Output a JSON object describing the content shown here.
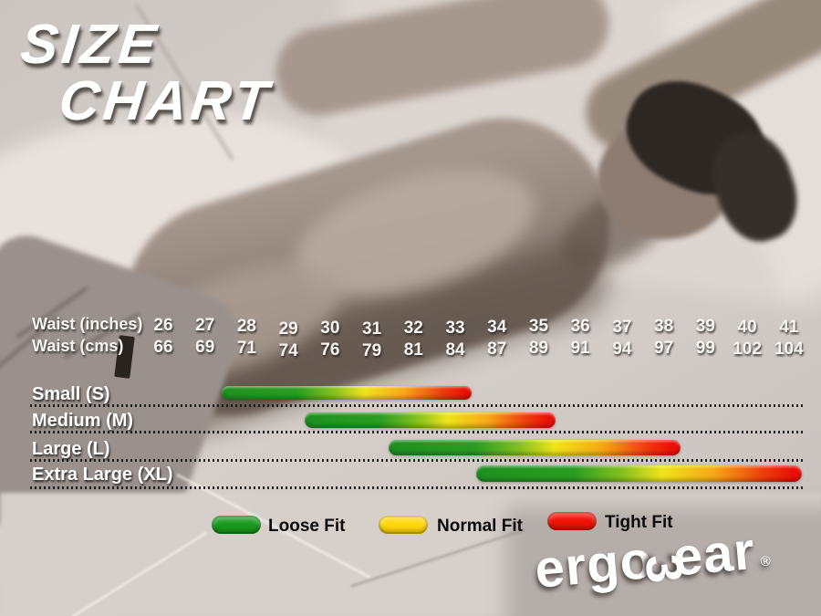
{
  "title": {
    "line1": "SIZE",
    "line2": "CHART"
  },
  "waist": {
    "inches_label": "Waist (inches)",
    "cms_label": "Waist (cms)",
    "inches": [
      "26",
      "27",
      "28",
      "29",
      "30",
      "31",
      "32",
      "33",
      "34",
      "35",
      "36",
      "37",
      "38",
      "39",
      "40",
      "41"
    ],
    "cms": [
      "66",
      "69",
      "71",
      "74",
      "76",
      "79",
      "81",
      "84",
      "87",
      "89",
      "91",
      "94",
      "97",
      "99",
      "102",
      "104"
    ]
  },
  "chart_data": {
    "type": "bar",
    "subtype": "horizontal-range-gradient",
    "title": "SIZE CHART",
    "x_axis": {
      "primary_label": "Waist (inches)",
      "secondary_label": "Waist (cms)",
      "inches_ticks": [
        26,
        27,
        28,
        29,
        30,
        31,
        32,
        33,
        34,
        35,
        36,
        37,
        38,
        39,
        40,
        41
      ],
      "cms_ticks": [
        66,
        69,
        71,
        74,
        76,
        79,
        81,
        84,
        87,
        89,
        91,
        94,
        97,
        99,
        102,
        104
      ],
      "range_inches": [
        26,
        41
      ]
    },
    "bars": [
      {
        "label": "Small (S)",
        "from_inches": 27.4,
        "to_inches": 33.4
      },
      {
        "label": "Medium (M)",
        "from_inches": 29.4,
        "to_inches": 35.4
      },
      {
        "label": "Large (L)",
        "from_inches": 31.4,
        "to_inches": 38.4
      },
      {
        "label": "Extra Large (XL)",
        "from_inches": 33.5,
        "to_inches": 41.3
      }
    ],
    "bar_gradient_meaning": "green end = Loose Fit at smaller waist, yellow middle = Normal Fit, red end = Tight Fit at larger waist",
    "legend": [
      {
        "label": "Loose Fit",
        "color": "#18991c"
      },
      {
        "label": "Normal Fit",
        "color": "#ffd60e"
      },
      {
        "label": "Tight Fit",
        "color": "#ee1407"
      }
    ],
    "grid": "dotted horizontal separator under each size row",
    "legend_position": "bottom"
  },
  "brand": {
    "prefix": "ergo",
    "glyph": "3",
    "suffix": "ear",
    "registered": "®"
  }
}
